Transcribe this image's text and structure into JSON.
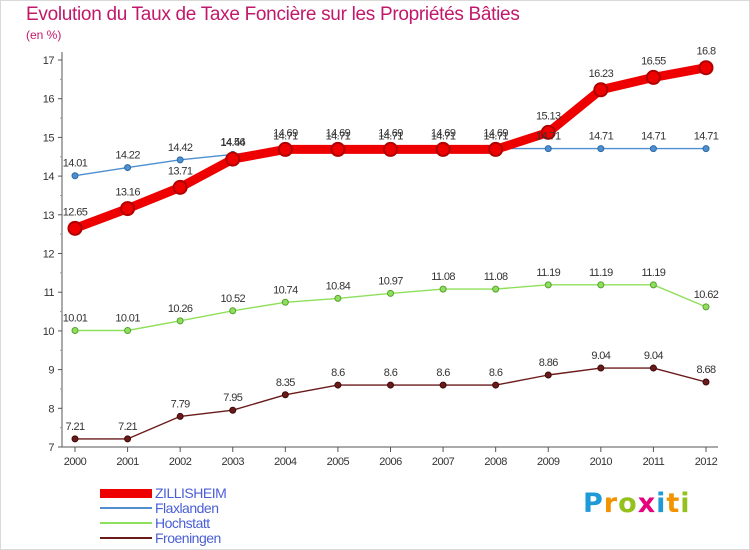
{
  "chart_data": {
    "type": "line",
    "title": "Evolution du Taux de Taxe Foncière sur les Propriétés Bâties",
    "ylabel": "(en %)",
    "xlabel": "",
    "ylim": [
      7,
      17
    ],
    "yticks": [
      7,
      8,
      9,
      10,
      11,
      12,
      13,
      14,
      15,
      16,
      17
    ],
    "grid": false,
    "legend_position": "bottom-left",
    "x": [
      "2000",
      "2001",
      "2002",
      "2003",
      "2004",
      "2005",
      "2006",
      "2007",
      "2008",
      "2009",
      "2010",
      "2011",
      "2012"
    ],
    "series": [
      {
        "name": "ZILLISHEIM",
        "color": "#ee0000",
        "values": [
          12.65,
          13.16,
          13.71,
          14.44,
          14.69,
          14.69,
          14.69,
          14.69,
          14.69,
          15.13,
          16.23,
          16.55,
          16.8
        ],
        "labels": [
          "12.65",
          "13.16",
          "13.71",
          "14.44",
          "14.69",
          "14.69",
          "14.69",
          "14.69",
          "14.69",
          "15.13",
          "16.23",
          "16.55",
          "16.8"
        ]
      },
      {
        "name": "Flaxlanden",
        "color": "#4f8fd0",
        "values": [
          14.01,
          14.22,
          14.42,
          14.56,
          14.71,
          14.71,
          14.71,
          14.71,
          14.71,
          14.71,
          14.71,
          14.71,
          14.71
        ],
        "labels": [
          "14.01",
          "14.22",
          "14.42",
          "14.56",
          "14.71",
          "14.71",
          "14.71",
          "14.71",
          "14.71",
          "14.71",
          "14.71",
          "14.71",
          "14.71"
        ]
      },
      {
        "name": "Hochstatt",
        "color": "#8ee05c",
        "values": [
          10.01,
          10.01,
          10.26,
          10.52,
          10.74,
          10.84,
          10.97,
          11.08,
          11.08,
          11.19,
          11.19,
          11.19,
          10.62
        ],
        "labels": [
          "10.01",
          "10.01",
          "10.26",
          "10.52",
          "10.74",
          "10.84",
          "10.97",
          "11.08",
          "11.08",
          "11.19",
          "11.19",
          "11.19",
          "10.62"
        ]
      },
      {
        "name": "Froeningen",
        "color": "#6b1a1a",
        "values": [
          7.21,
          7.21,
          7.79,
          7.95,
          8.35,
          8.6,
          8.6,
          8.6,
          8.6,
          8.86,
          9.04,
          9.04,
          8.68
        ],
        "labels": [
          "7.21",
          "7.21",
          "7.79",
          "7.95",
          "8.35",
          "8.6",
          "8.6",
          "8.6",
          "8.6",
          "8.86",
          "9.04",
          "9.04",
          "8.68"
        ]
      }
    ]
  },
  "logo": {
    "letters": [
      "P",
      "r",
      "o",
      "x",
      "i",
      "t",
      "i"
    ],
    "colors": [
      "#1e9bd7",
      "#f29400",
      "#95c11f",
      "#e6007e",
      "#1e9bd7",
      "#f29400",
      "#95c11f"
    ]
  }
}
